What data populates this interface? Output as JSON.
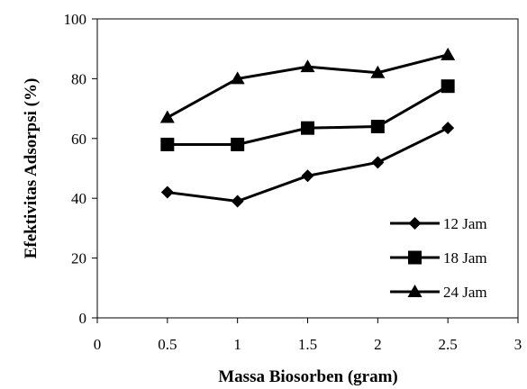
{
  "chart_data": {
    "type": "line",
    "title": "",
    "xlabel": "Massa Biosorben (gram)",
    "ylabel": "Efektivitas Adsorpsi (%)",
    "xlim": [
      0,
      3
    ],
    "ylim": [
      0,
      100
    ],
    "xticks": [
      "0",
      "0.5",
      "1",
      "1.5",
      "2",
      "2.5",
      "3"
    ],
    "yticks": [
      "0",
      "20",
      "40",
      "60",
      "80",
      "100"
    ],
    "grid": false,
    "legend_position": "bottom-right",
    "x": [
      0.5,
      1,
      1.5,
      2,
      2.5
    ],
    "series": [
      {
        "name": "12 Jam",
        "marker": "diamond",
        "values": [
          42,
          39,
          47.5,
          52,
          63.5
        ]
      },
      {
        "name": "18 Jam",
        "marker": "square",
        "values": [
          58,
          58,
          63.5,
          64,
          77.5
        ]
      },
      {
        "name": "24 Jam",
        "marker": "triangle",
        "values": [
          67,
          80,
          84,
          82,
          88
        ]
      }
    ],
    "line_color": "#000000"
  }
}
